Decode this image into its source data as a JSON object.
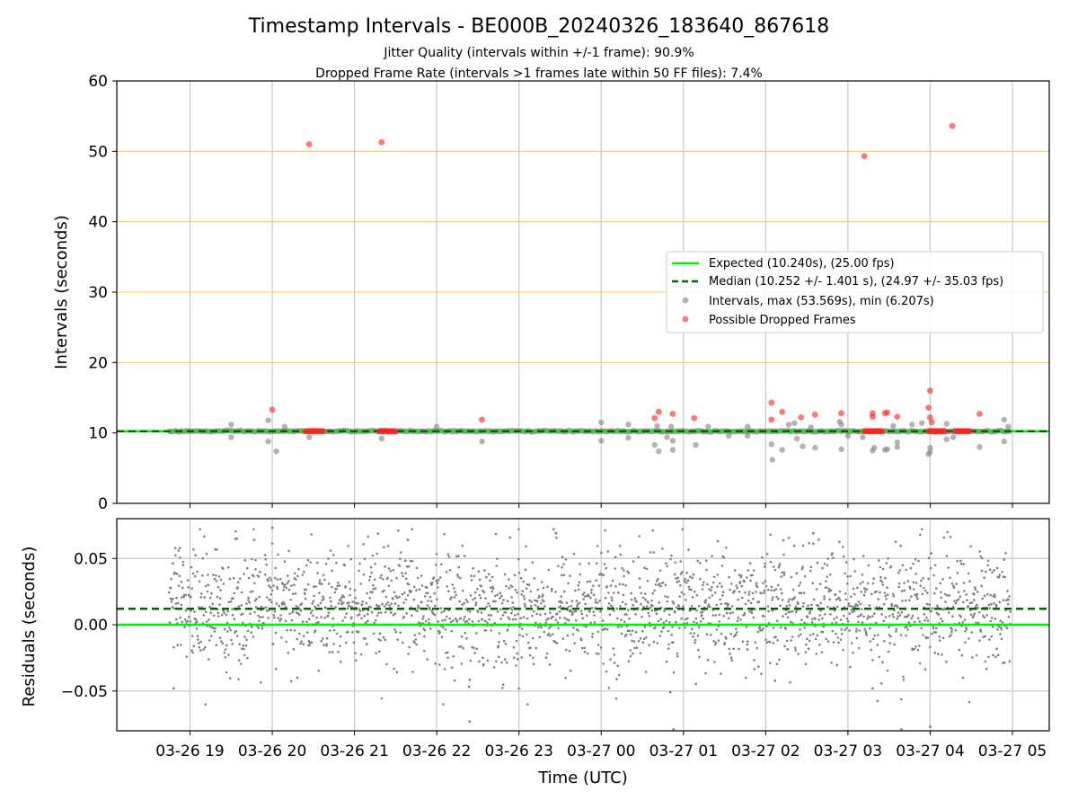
{
  "chart_data": [
    {
      "type": "scatter",
      "title": "Timestamp Intervals - BE000B_20240326_183640_867618",
      "subtitle_lines": [
        "Jitter Quality (intervals within +/-1 frame): 90.9%",
        "Dropped Frame Rate (intervals >1 frames late within 50 FF files): 7.4%"
      ],
      "ylabel": "Intervals (seconds)",
      "xlim_hours_label_range": [
        "03-26 18:10",
        "03-27 05:30"
      ],
      "ylim": [
        0,
        60
      ],
      "yticks": [
        0,
        10,
        20,
        30,
        40,
        50,
        60
      ],
      "grid": "vertical gray gridlines at x ticks; horizontal orange lines at 20, 30, 40, 50",
      "legend_position": "center-right",
      "expected_interval": 10.24,
      "median_interval": 10.252,
      "legend": [
        {
          "label": "Expected (10.240s), (25.00 fps)",
          "style": "solid",
          "color": "#00ee00"
        },
        {
          "label": "Median (10.252 +/- 1.401 s), (24.97 +/- 35.03 fps)",
          "style": "dashed",
          "color": "#006400"
        },
        {
          "label": "Intervals, max (53.569s), min (6.207s)",
          "style": "dot",
          "color": "#808080"
        },
        {
          "label": "Possible Dropped Frames",
          "style": "dot",
          "color": "#ff2020"
        }
      ],
      "series": [
        {
          "name": "Possible Dropped Frames",
          "points": [
            {
              "x": 20.0,
              "y": 13.3
            },
            {
              "x": 20.45,
              "y": 51.0
            },
            {
              "x": 21.33,
              "y": 51.3
            },
            {
              "x": 22.55,
              "y": 11.9
            },
            {
              "x": 0.65,
              "y": 12.1
            },
            {
              "x": 0.7,
              "y": 13.0
            },
            {
              "x": 0.87,
              "y": 12.7
            },
            {
              "x": 1.13,
              "y": 12.1
            },
            {
              "x": 2.07,
              "y": 14.3
            },
            {
              "x": 2.07,
              "y": 11.9
            },
            {
              "x": 2.2,
              "y": 13.0
            },
            {
              "x": 2.43,
              "y": 12.2
            },
            {
              "x": 2.6,
              "y": 12.6
            },
            {
              "x": 2.92,
              "y": 12.8
            },
            {
              "x": 3.2,
              "y": 49.3
            },
            {
              "x": 3.3,
              "y": 12.8
            },
            {
              "x": 3.3,
              "y": 12.3
            },
            {
              "x": 3.45,
              "y": 12.8
            },
            {
              "x": 3.48,
              "y": 12.9
            },
            {
              "x": 3.6,
              "y": 12.3
            },
            {
              "x": 3.98,
              "y": 13.6
            },
            {
              "x": 4.0,
              "y": 16.0
            },
            {
              "x": 4.0,
              "y": 12.2
            },
            {
              "x": 4.02,
              "y": 11.5
            },
            {
              "x": 4.27,
              "y": 53.6
            },
            {
              "x": 4.6,
              "y": 12.7
            }
          ],
          "clusters_near_expected": [
            {
              "x_from": 20.4,
              "x_to": 20.62,
              "y": 10.25
            },
            {
              "x_from": 21.3,
              "x_to": 21.5,
              "y": 10.25
            },
            {
              "x_from": 3.2,
              "x_to": 3.42,
              "y": 10.25
            },
            {
              "x_from": 3.98,
              "x_to": 4.18,
              "y": 10.25
            },
            {
              "x_from": 4.3,
              "x_to": 4.48,
              "y": 10.25
            }
          ]
        },
        {
          "name": "Intervals, max (53.569s), min (6.207s)",
          "outliers": [
            {
              "x": 19.95,
              "y": 11.8
            },
            {
              "x": 19.95,
              "y": 8.8
            },
            {
              "x": 20.05,
              "y": 7.4
            },
            {
              "x": 20.15,
              "y": 10.9
            },
            {
              "x": 19.5,
              "y": 11.2
            },
            {
              "x": 19.5,
              "y": 9.4
            },
            {
              "x": 20.45,
              "y": 9.4
            },
            {
              "x": 21.33,
              "y": 9.2
            },
            {
              "x": 22.0,
              "y": 10.9
            },
            {
              "x": 22.55,
              "y": 8.8
            },
            {
              "x": 0.0,
              "y": 11.5
            },
            {
              "x": 0.0,
              "y": 8.9
            },
            {
              "x": 0.33,
              "y": 11.2
            },
            {
              "x": 0.33,
              "y": 9.3
            },
            {
              "x": 0.65,
              "y": 8.3
            },
            {
              "x": 0.7,
              "y": 7.4
            },
            {
              "x": 0.68,
              "y": 11.0
            },
            {
              "x": 0.8,
              "y": 9.4
            },
            {
              "x": 0.87,
              "y": 7.6
            },
            {
              "x": 0.87,
              "y": 8.9
            },
            {
              "x": 0.85,
              "y": 10.9
            },
            {
              "x": 1.15,
              "y": 8.3
            },
            {
              "x": 1.3,
              "y": 10.9
            },
            {
              "x": 1.55,
              "y": 9.6
            },
            {
              "x": 1.78,
              "y": 10.9
            },
            {
              "x": 1.78,
              "y": 9.6
            },
            {
              "x": 2.07,
              "y": 8.4
            },
            {
              "x": 2.08,
              "y": 6.2
            },
            {
              "x": 2.2,
              "y": 7.6
            },
            {
              "x": 2.28,
              "y": 11.2
            },
            {
              "x": 2.35,
              "y": 11.4
            },
            {
              "x": 2.38,
              "y": 9.2
            },
            {
              "x": 2.45,
              "y": 8.1
            },
            {
              "x": 2.55,
              "y": 10.8
            },
            {
              "x": 2.6,
              "y": 7.9
            },
            {
              "x": 2.92,
              "y": 11.2
            },
            {
              "x": 2.92,
              "y": 7.7
            },
            {
              "x": 2.9,
              "y": 11.6
            },
            {
              "x": 3.0,
              "y": 9.6
            },
            {
              "x": 3.18,
              "y": 9.4
            },
            {
              "x": 3.3,
              "y": 7.5
            },
            {
              "x": 3.32,
              "y": 7.9
            },
            {
              "x": 3.45,
              "y": 7.6
            },
            {
              "x": 3.48,
              "y": 7.7
            },
            {
              "x": 3.6,
              "y": 8.0
            },
            {
              "x": 3.6,
              "y": 8.7
            },
            {
              "x": 3.55,
              "y": 11.0
            },
            {
              "x": 3.78,
              "y": 11.2
            },
            {
              "x": 3.9,
              "y": 11.4
            },
            {
              "x": 3.98,
              "y": 7.0
            },
            {
              "x": 4.0,
              "y": 7.3
            },
            {
              "x": 4.0,
              "y": 7.9
            },
            {
              "x": 4.2,
              "y": 11.3
            },
            {
              "x": 4.2,
              "y": 9.1
            },
            {
              "x": 4.28,
              "y": 9.4
            },
            {
              "x": 4.6,
              "y": 8.0
            },
            {
              "x": 4.9,
              "y": 11.9
            },
            {
              "x": 4.9,
              "y": 8.8
            },
            {
              "x": 4.95,
              "y": 10.9
            }
          ],
          "baseline": {
            "x_from": 18.75,
            "x_to": 4.98,
            "y": 10.25
          }
        }
      ]
    },
    {
      "type": "scatter",
      "ylabel": "Residuals (seconds)",
      "xlabel": "Time (UTC)",
      "ylim": [
        -0.08,
        0.08
      ],
      "yticks": [
        -0.05,
        0.0,
        0.05
      ],
      "ytick_labels": [
        "−0.05",
        "0.00",
        "0.05"
      ],
      "grid": "gray gridlines at x ticks and y ticks",
      "expected_residual": 0.0,
      "median_residual": 0.012,
      "series": [
        {
          "name": "Residuals",
          "description_points": [
            {
              "x": 19.57,
              "y": 0.065
            },
            {
              "x": 19.78,
              "y": 0.064
            },
            {
              "x": 20.0,
              "y": 0.073
            },
            {
              "x": 21.65,
              "y": 0.064
            },
            {
              "x": 23.45,
              "y": 0.069
            },
            {
              "x": 2.58,
              "y": 0.069
            },
            {
              "x": 22.4,
              "y": -0.073
            },
            {
              "x": 0.88,
              "y": -0.079
            },
            {
              "x": 3.65,
              "y": -0.079
            },
            {
              "x": 4.0,
              "y": -0.077
            },
            {
              "x": 18.8,
              "y": -0.048
            },
            {
              "x": 23.0,
              "y": -0.048
            },
            {
              "x": 3.3,
              "y": -0.048
            }
          ],
          "x_range": [
            18.75,
            4.98
          ],
          "center": 0.012,
          "spread": 0.03
        }
      ]
    }
  ],
  "x_axis": {
    "tick_hours": [
      19,
      20,
      21,
      22,
      23,
      0,
      1,
      2,
      3,
      4,
      5
    ],
    "tick_labels": [
      "03-26 19",
      "03-26 20",
      "03-26 21",
      "03-26 22",
      "03-26 23",
      "03-27 00",
      "03-27 01",
      "03-27 02",
      "03-27 03",
      "03-27 04",
      "03-27 05"
    ]
  },
  "colors": {
    "expected": "#00ee00",
    "median": "#006400",
    "intervals": "#808080",
    "dropped": "#ff2020",
    "orange_grid": "#ffc857",
    "grid": "#c8c8c8"
  }
}
